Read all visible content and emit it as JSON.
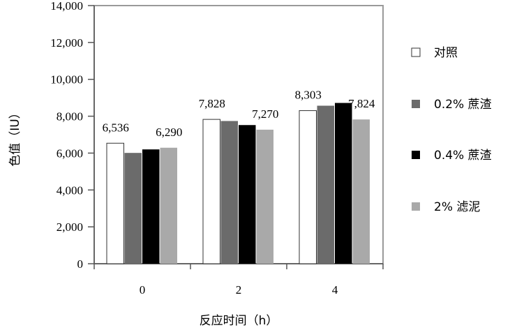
{
  "chart_data": {
    "type": "bar",
    "xlabel": "反应时间（h）",
    "ylabel": "色值（IU）",
    "categories": [
      "0",
      "2",
      "4"
    ],
    "ylim": [
      0,
      14000
    ],
    "yticks": [
      "0",
      "2,000",
      "4,000",
      "6,000",
      "8,000",
      "10,000",
      "12,000",
      "14,000"
    ],
    "ytick_values": [
      0,
      2000,
      4000,
      6000,
      8000,
      10000,
      12000,
      14000
    ],
    "grid": false,
    "legend_position": "right",
    "series": [
      {
        "name": "对照",
        "color": "#ffffff",
        "values": [
          6536,
          7828,
          8303
        ]
      },
      {
        "name": "0.2% 蔗渣",
        "color": "#6b6b6b",
        "values": [
          6010,
          7740,
          8570
        ]
      },
      {
        "name": "0.4% 蔗渣",
        "color": "#000000",
        "values": [
          6200,
          7520,
          8720
        ]
      },
      {
        "name": "2% 滤泥",
        "color": "#a9a9a9",
        "values": [
          6290,
          7270,
          7824
        ]
      }
    ],
    "data_labels": [
      {
        "series": 0,
        "category": 0,
        "text": "6,536"
      },
      {
        "series": 3,
        "category": 0,
        "text": "6,290"
      },
      {
        "series": 0,
        "category": 1,
        "text": "7,828"
      },
      {
        "series": 3,
        "category": 1,
        "text": "7,270"
      },
      {
        "series": 0,
        "category": 2,
        "text": "8,303"
      },
      {
        "series": 3,
        "category": 2,
        "text": "7,824"
      }
    ]
  }
}
